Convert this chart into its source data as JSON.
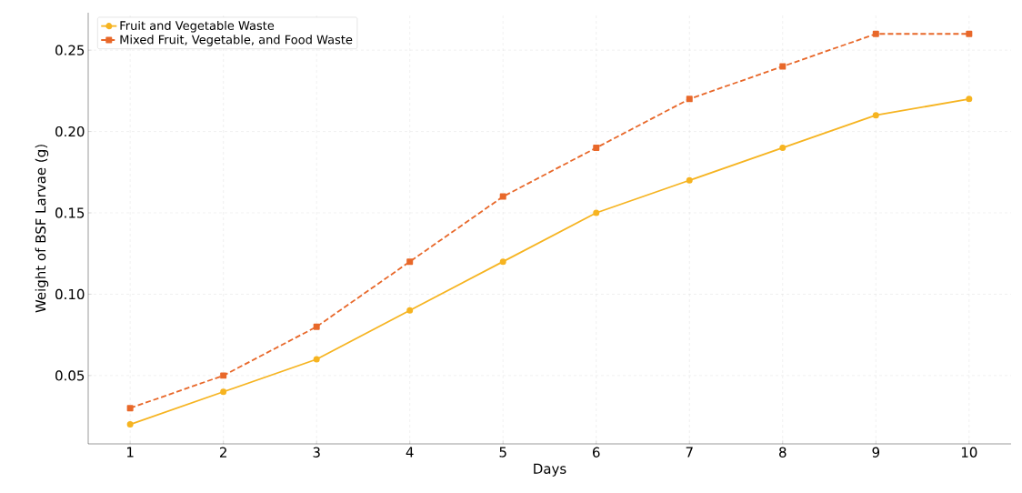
{
  "chart_data": {
    "type": "line",
    "xlabel": "Days",
    "ylabel": "Weight of BSF Larvae (g)",
    "x": [
      1,
      2,
      3,
      4,
      5,
      6,
      7,
      8,
      9,
      10
    ],
    "series": [
      {
        "name": "Fruit and Vegetable Waste",
        "color": "#f6b421",
        "marker": "circle",
        "line_style": "solid",
        "values": [
          0.02,
          0.04,
          0.06,
          0.09,
          0.12,
          0.15,
          0.17,
          0.19,
          0.21,
          0.22
        ]
      },
      {
        "name": "Mixed Fruit, Vegetable, and Food Waste",
        "color": "#e8682a",
        "marker": "square",
        "line_style": "dashed",
        "values": [
          0.03,
          0.05,
          0.08,
          0.12,
          0.16,
          0.19,
          0.22,
          0.24,
          0.26,
          0.26
        ]
      }
    ],
    "xlim": [
      0.55,
      10.45
    ],
    "ylim": [
      0.008,
      0.273
    ],
    "xticks": [
      1,
      2,
      3,
      4,
      5,
      6,
      7,
      8,
      9,
      10
    ],
    "yticks": [
      {
        "value": 0.05,
        "label": "0.05"
      },
      {
        "value": 0.1,
        "label": "0.10"
      },
      {
        "value": 0.15,
        "label": "0.15"
      },
      {
        "value": 0.2,
        "label": "0.20"
      },
      {
        "value": 0.25,
        "label": "0.25"
      }
    ],
    "grid": true,
    "legend": "top left"
  }
}
